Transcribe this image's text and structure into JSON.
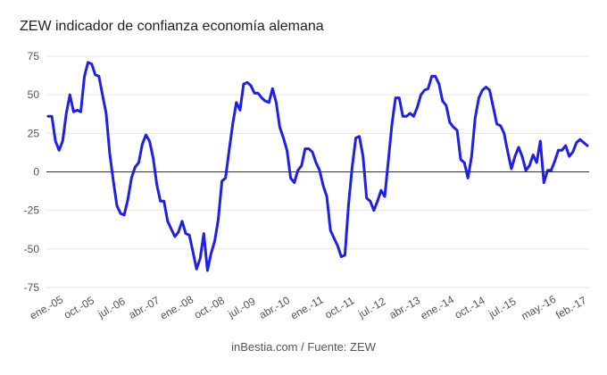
{
  "chart_data": {
    "type": "line",
    "title": "ZEW indicador de confianza economía alemana",
    "source": "inBestia.com / Fuente: ZEW",
    "xlabel": "",
    "ylabel": "",
    "ylim": [
      -75,
      75
    ],
    "yticks": [
      75,
      50,
      25,
      0,
      -25,
      -50,
      -75
    ],
    "grid": true,
    "legend": "none",
    "line_color": "#1f1fe6",
    "start": "2005-01",
    "xtick_labels": [
      {
        "label": "ene.-05",
        "date": "2005-01"
      },
      {
        "label": "oct.-05",
        "date": "2005-10"
      },
      {
        "label": "jul.-06",
        "date": "2006-07"
      },
      {
        "label": "abr.-07",
        "date": "2007-04"
      },
      {
        "label": "ene.-08",
        "date": "2008-01"
      },
      {
        "label": "oct.-08",
        "date": "2008-10"
      },
      {
        "label": "jul.-09",
        "date": "2009-07"
      },
      {
        "label": "abr.-10",
        "date": "2010-04"
      },
      {
        "label": "ene.-11",
        "date": "2011-01"
      },
      {
        "label": "oct.-11",
        "date": "2011-10"
      },
      {
        "label": "jul.-12",
        "date": "2012-07"
      },
      {
        "label": "abr.-13",
        "date": "2013-04"
      },
      {
        "label": "ene.-14",
        "date": "2014-01"
      },
      {
        "label": "oct.-14",
        "date": "2014-10"
      },
      {
        "label": "jul.-15",
        "date": "2015-07"
      },
      {
        "label": "may.-16",
        "date": "2016-05"
      },
      {
        "label": "feb.-17",
        "date": "2017-02"
      }
    ],
    "values": [
      36,
      36,
      20,
      14,
      20,
      38,
      50,
      39,
      40,
      39,
      62,
      71,
      70,
      63,
      62,
      50,
      38,
      12,
      -6,
      -22,
      -27,
      -28,
      -18,
      -4,
      3,
      6,
      18,
      24,
      20,
      9,
      -8,
      -19,
      -19,
      -32,
      -37,
      -42,
      -39,
      -32,
      -40,
      -41,
      -52,
      -63,
      -56,
      -40,
      -64,
      -53,
      -45,
      -31,
      -6,
      -4,
      14,
      31,
      45,
      40,
      57,
      58,
      56,
      51,
      51,
      48,
      46,
      45,
      54,
      45,
      29,
      22,
      14,
      -4,
      -7,
      1,
      4,
      15,
      15,
      13,
      6,
      1,
      -9,
      -16,
      -38,
      -43,
      -48,
      -55,
      -54,
      -21,
      3,
      22,
      23,
      10,
      -17,
      -19,
      -25,
      -19,
      -12,
      -16,
      7,
      31,
      48,
      48,
      36,
      36,
      38,
      36,
      42,
      50,
      53,
      54,
      62,
      62,
      57,
      46,
      43,
      32,
      29,
      27,
      8,
      6,
      -4,
      10,
      35,
      48,
      53,
      55,
      53,
      42,
      31,
      30,
      25,
      13,
      2,
      10,
      16,
      10,
      1,
      4,
      11,
      6,
      20,
      -7,
      1,
      1,
      7,
      14,
      14,
      17,
      10,
      13,
      19,
      21,
      19,
      17
    ]
  }
}
